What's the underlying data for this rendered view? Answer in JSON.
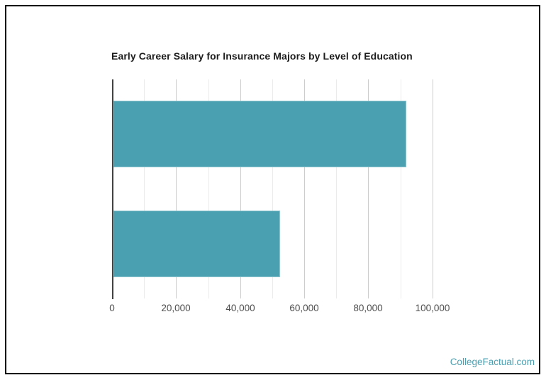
{
  "chart_data": {
    "type": "bar",
    "orientation": "horizontal",
    "title": "Early Career Salary for Insurance Majors by Level of Education",
    "categories": [
      "",
      ""
    ],
    "values": [
      91400,
      52000
    ],
    "x_ticks": [
      0,
      20000,
      40000,
      60000,
      80000,
      100000
    ],
    "x_tick_labels": [
      "0",
      "20,000",
      "40,000",
      "60,000",
      "80,000",
      "100,000"
    ],
    "xlim": [
      0,
      110000
    ],
    "minor_grid_step": 10000,
    "major_grid_step": 20000,
    "grid": true,
    "legend": "none",
    "y_axis_category_labels_visible": false,
    "bar_color": "#4a9fb0",
    "xlabel": "",
    "ylabel": ""
  },
  "footer": {
    "brand": "CollegeFactual.com"
  },
  "colors": {
    "bar": "#4a9fb0",
    "brand_text": "#4a9fb0",
    "axis_line": "#424242",
    "major_gridline": "#cccccc",
    "minor_gridline": "#ebebeb",
    "title_text": "#1d1d1d",
    "tick_text": "#4d4d4d",
    "frame_border": "#000000",
    "background": "#ffffff"
  }
}
